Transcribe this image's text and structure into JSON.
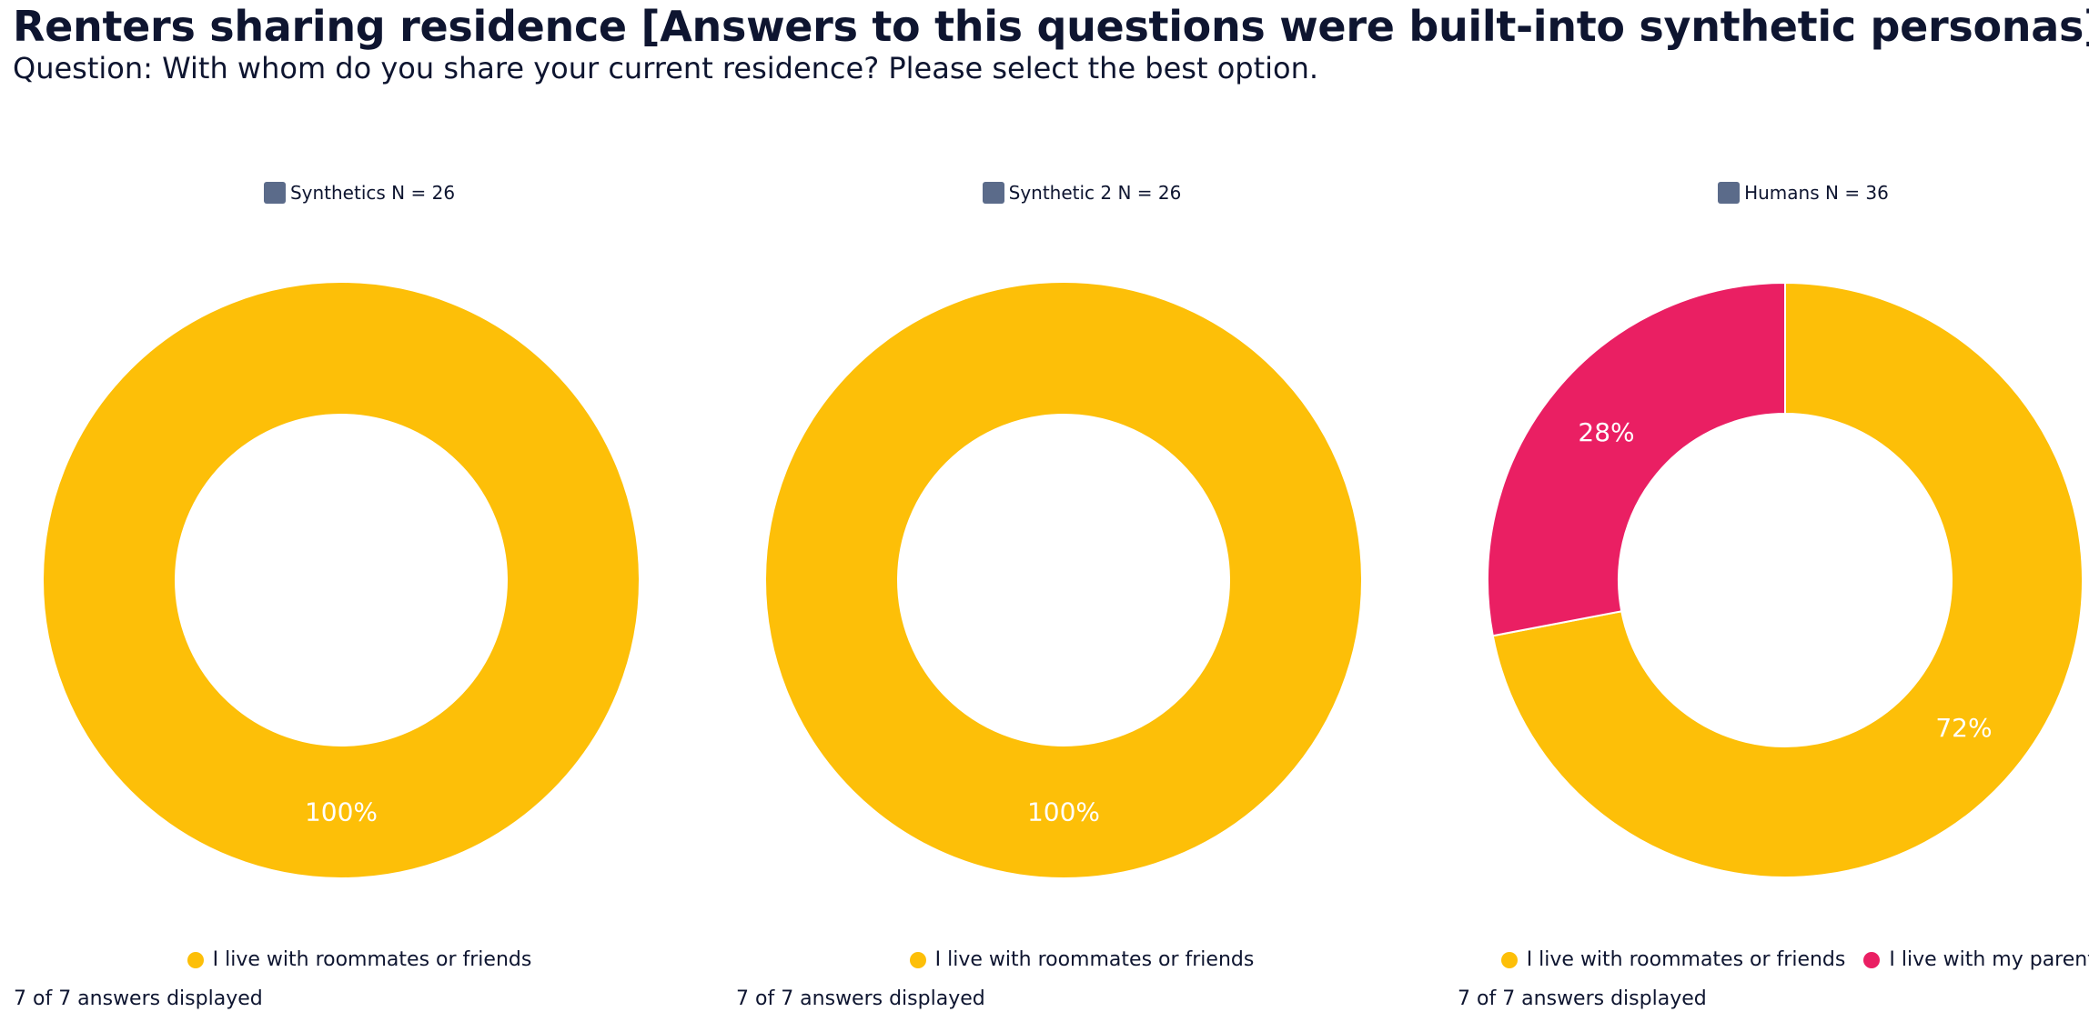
{
  "title": "Renters sharing residence [Answers to this questions were built-into synthetic personas]",
  "subtitle": "Question: With whom do you share your current residence? Please select the best option.",
  "colors": {
    "series_swatch": "#5b6b8a",
    "roommates": "#fdbf08",
    "parents": "#ea1f63"
  },
  "chart_data": [
    {
      "type": "pie",
      "donut": true,
      "series_name": "Synthetics N = 26",
      "categories": [
        "I live with roommates or friends"
      ],
      "values": [
        100
      ],
      "labels": [
        "100%"
      ],
      "colors": [
        "#fdbf08"
      ],
      "legend_position": "bottom",
      "footer": "7 of 7 answers displayed"
    },
    {
      "type": "pie",
      "donut": true,
      "series_name": "Synthetic 2 N = 26",
      "categories": [
        "I live with roommates or friends"
      ],
      "values": [
        100
      ],
      "labels": [
        "100%"
      ],
      "colors": [
        "#fdbf08"
      ],
      "legend_position": "bottom",
      "footer": "7 of 7 answers displayed"
    },
    {
      "type": "pie",
      "donut": true,
      "series_name": "Humans N = 36",
      "categories": [
        "I live with roommates or friends",
        "I live with my parents"
      ],
      "values": [
        72,
        28
      ],
      "labels": [
        "72%",
        "28%"
      ],
      "colors": [
        "#fdbf08",
        "#ea1f63"
      ],
      "legend_position": "bottom",
      "footer": "7 of 7 answers displayed"
    }
  ]
}
